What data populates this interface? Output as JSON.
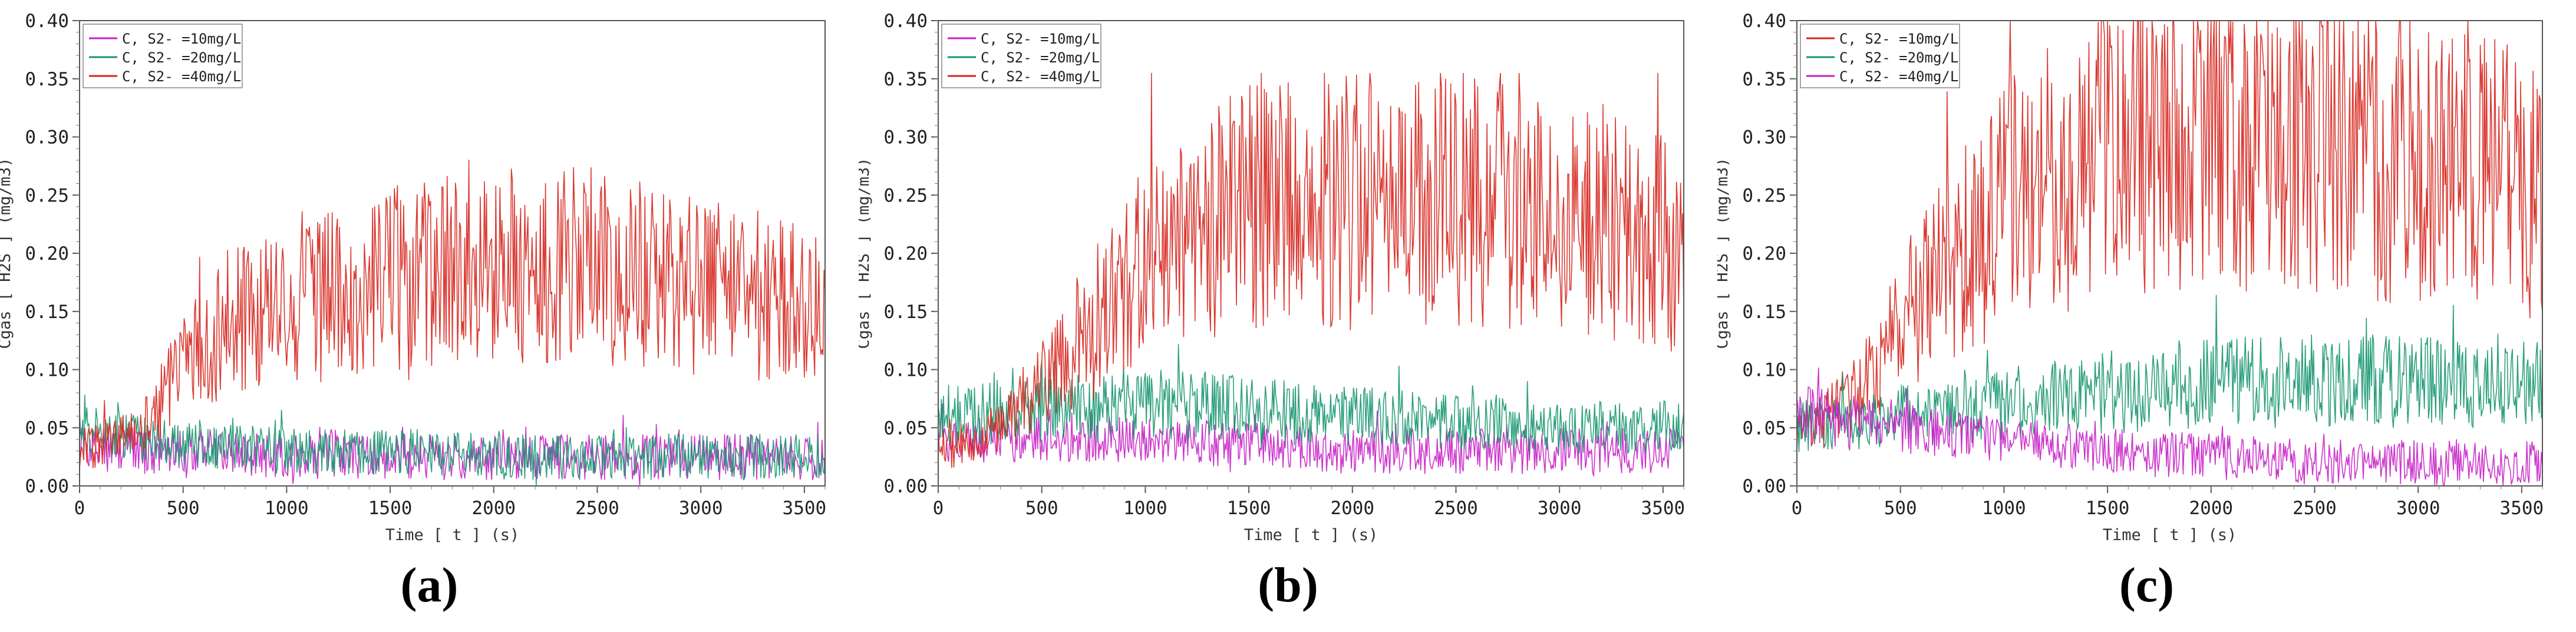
{
  "captions": [
    "(a)",
    "(b)",
    "(c)"
  ],
  "chart_data": [
    {
      "type": "line",
      "xlabel": "Time [ t ] (s)",
      "ylabel": "Cgas [ H2S ] (mg/m3)",
      "xlim": [
        0,
        3600
      ],
      "ylim": [
        0,
        0.4
      ],
      "xticks": [
        0,
        500,
        1000,
        1500,
        2000,
        2500,
        3000,
        3500
      ],
      "yticks": [
        "0.00",
        "0.05",
        "0.10",
        "0.15",
        "0.20",
        "0.25",
        "0.30",
        "0.35",
        "0.40"
      ],
      "legend_position": "top-left",
      "grid": false,
      "series": [
        {
          "name": "C, S2- =10mg/L",
          "color": "#c71fc7",
          "x": [
            0,
            500,
            1000,
            1500,
            2000,
            2500,
            3000,
            3500,
            3600
          ],
          "values": [
            0.03,
            0.03,
            0.025,
            0.025,
            0.025,
            0.025,
            0.025,
            0.025,
            0.025
          ],
          "range": [
            0.0,
            0.09
          ],
          "seed": 11
        },
        {
          "name": "C, S2- =20mg/L",
          "color": "#16966f",
          "x": [
            0,
            500,
            1000,
            1500,
            2000,
            2500,
            3000,
            3500,
            3600
          ],
          "values": [
            0.05,
            0.035,
            0.03,
            0.03,
            0.025,
            0.025,
            0.025,
            0.025,
            0.025
          ],
          "range": [
            0.0,
            0.15
          ],
          "seed": 12
        },
        {
          "name": "C, S2- =40mg/L",
          "color": "#d7261e",
          "x": [
            0,
            300,
            500,
            700,
            1000,
            1500,
            2000,
            2500,
            3000,
            3500,
            3600
          ],
          "values": [
            0.03,
            0.05,
            0.1,
            0.14,
            0.15,
            0.18,
            0.19,
            0.19,
            0.17,
            0.16,
            0.14
          ],
          "range": [
            0.0,
            0.29
          ],
          "seed": 13
        }
      ]
    },
    {
      "type": "line",
      "xlabel": "Time [ t ] (s)",
      "ylabel": "Cgas [ H2S ] (mg/m3)",
      "xlim": [
        0,
        3600
      ],
      "ylim": [
        0,
        0.4
      ],
      "xticks": [
        0,
        500,
        1000,
        1500,
        2000,
        2500,
        3000,
        3500
      ],
      "yticks": [
        "0.00",
        "0.05",
        "0.10",
        "0.15",
        "0.20",
        "0.25",
        "0.30",
        "0.35",
        "0.40"
      ],
      "legend_position": "top-left",
      "grid": false,
      "series": [
        {
          "name": "C, S2- =10mg/L",
          "color": "#c71fc7",
          "x": [
            0,
            500,
            1000,
            1500,
            2000,
            2500,
            3000,
            3500,
            3600
          ],
          "values": [
            0.04,
            0.04,
            0.04,
            0.035,
            0.03,
            0.03,
            0.03,
            0.03,
            0.03
          ],
          "range": [
            0.0,
            0.15
          ],
          "seed": 21
        },
        {
          "name": "C, S2- =20mg/L",
          "color": "#16966f",
          "x": [
            0,
            500,
            1000,
            1500,
            2000,
            2500,
            3000,
            3500,
            3600
          ],
          "values": [
            0.06,
            0.065,
            0.07,
            0.065,
            0.06,
            0.055,
            0.05,
            0.05,
            0.05
          ],
          "range": [
            0.0,
            0.165
          ],
          "seed": 22
        },
        {
          "name": "C, S2- =40mg/L",
          "color": "#d7261e",
          "x": [
            0,
            300,
            500,
            800,
            1000,
            1500,
            2000,
            2500,
            3000,
            3500,
            3600
          ],
          "values": [
            0.03,
            0.05,
            0.09,
            0.15,
            0.2,
            0.24,
            0.25,
            0.25,
            0.23,
            0.21,
            0.2
          ],
          "range": [
            0.0,
            0.355
          ],
          "seed": 23
        }
      ]
    },
    {
      "type": "line",
      "xlabel": "Time [ t ] (s)",
      "ylabel": "Cgas [ H2S ] (mg/m3)",
      "xlim": [
        0,
        3600
      ],
      "ylim": [
        0,
        0.4
      ],
      "xticks": [
        0,
        500,
        1000,
        1500,
        2000,
        2500,
        3000,
        3500
      ],
      "yticks": [
        "0.00",
        "0.05",
        "0.10",
        "0.15",
        "0.20",
        "0.25",
        "0.30",
        "0.35",
        "0.40"
      ],
      "legend_position": "top-left",
      "grid": false,
      "series": [
        {
          "name": "C, S2- =10mg/L",
          "color": "#d7261e",
          "x": [
            0,
            300,
            500,
            800,
            1000,
            1500,
            2000,
            2500,
            3000,
            3500,
            3600
          ],
          "values": [
            0.04,
            0.08,
            0.14,
            0.2,
            0.24,
            0.29,
            0.3,
            0.3,
            0.28,
            0.26,
            0.25
          ],
          "range": [
            0.0,
            0.4
          ],
          "seed": 31
        },
        {
          "name": "C, S2- =20mg/L",
          "color": "#16966f",
          "x": [
            0,
            500,
            1000,
            1500,
            2000,
            2500,
            3000,
            3500,
            3600
          ],
          "values": [
            0.05,
            0.06,
            0.07,
            0.08,
            0.09,
            0.09,
            0.09,
            0.09,
            0.09
          ],
          "range": [
            0.0,
            0.2
          ],
          "seed": 32
        },
        {
          "name": "C, S2- =40mg/L",
          "color": "#c71fc7",
          "x": [
            0,
            500,
            1000,
            1500,
            2000,
            2500,
            3000,
            3500,
            3600
          ],
          "values": [
            0.06,
            0.05,
            0.04,
            0.03,
            0.025,
            0.02,
            0.02,
            0.02,
            0.02
          ],
          "range": [
            0.0,
            0.13
          ],
          "seed": 33
        }
      ]
    }
  ]
}
